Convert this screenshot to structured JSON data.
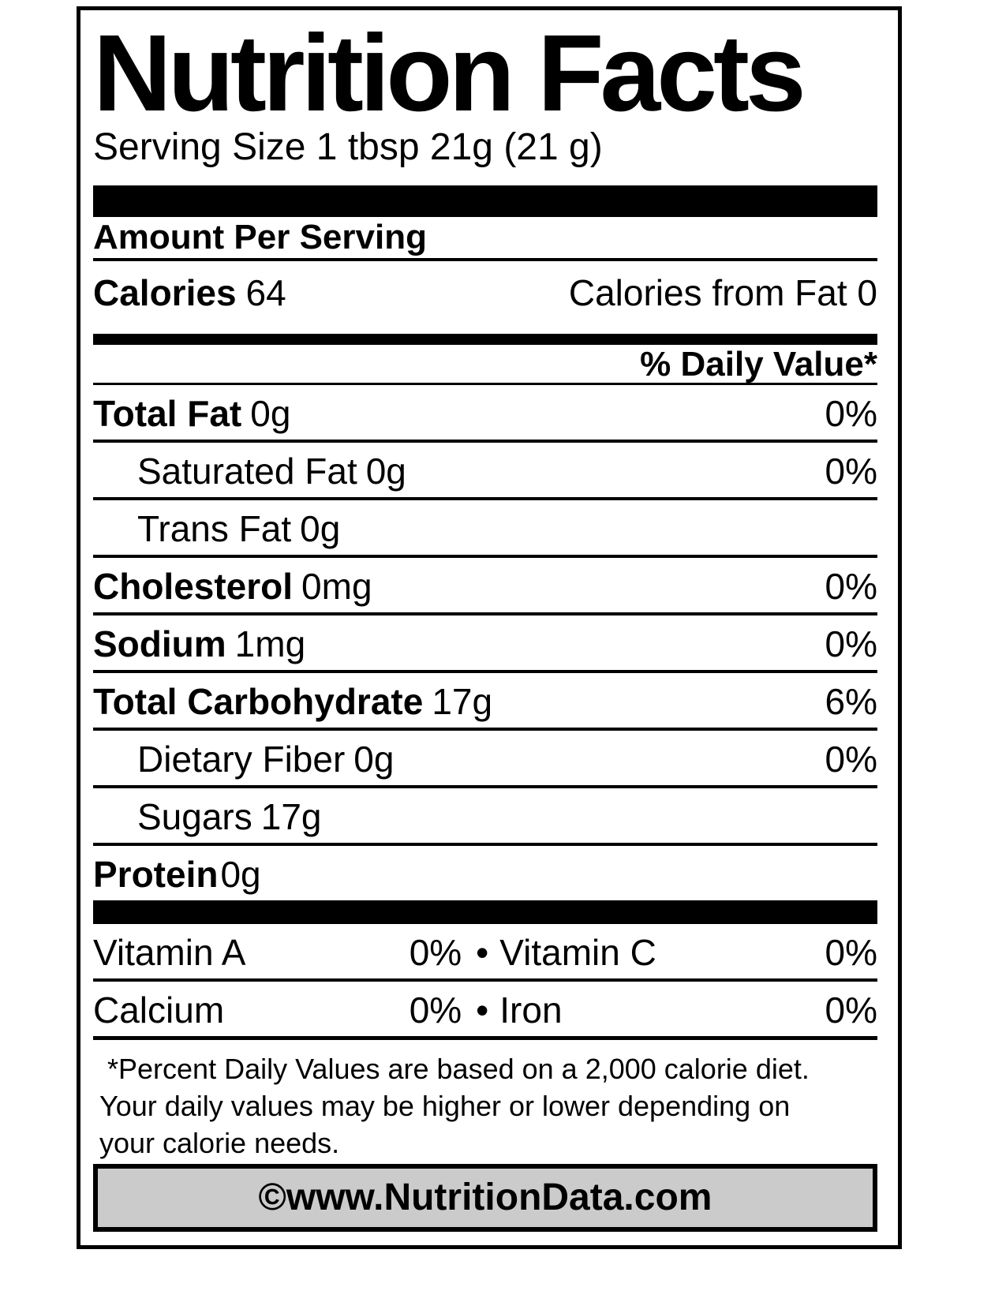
{
  "label": {
    "title": "Nutrition Facts",
    "serving_size": "Serving Size 1 tbsp 21g (21 g)",
    "amount_per_serving": "Amount Per Serving",
    "calories_label": "Calories",
    "calories_value": "64",
    "calories_from_fat_label": "Calories from Fat",
    "calories_from_fat_value": "0",
    "daily_value_header": "% Daily Value*",
    "nutrients": [
      {
        "name": "Total Fat",
        "amount": "0g",
        "dv": "0%",
        "bold": true,
        "indent": false,
        "tight": false
      },
      {
        "name": "Saturated Fat",
        "amount": "0g",
        "dv": "0%",
        "bold": false,
        "indent": true,
        "tight": false
      },
      {
        "name": "Trans Fat",
        "amount": "0g",
        "dv": "",
        "bold": false,
        "indent": true,
        "tight": false
      },
      {
        "name": "Cholesterol",
        "amount": "0mg",
        "dv": "0%",
        "bold": true,
        "indent": false,
        "tight": false
      },
      {
        "name": "Sodium",
        "amount": "1mg",
        "dv": "0%",
        "bold": true,
        "indent": false,
        "tight": false
      },
      {
        "name": "Total Carbohydrate",
        "amount": "17g",
        "dv": "6%",
        "bold": true,
        "indent": false,
        "tight": false
      },
      {
        "name": "Dietary Fiber",
        "amount": "0g",
        "dv": "0%",
        "bold": false,
        "indent": true,
        "tight": false
      },
      {
        "name": "Sugars",
        "amount": "17g",
        "dv": "",
        "bold": false,
        "indent": true,
        "tight": false
      },
      {
        "name": "Protein",
        "amount": "0g",
        "dv": "",
        "bold": true,
        "indent": false,
        "tight": true
      }
    ],
    "vitamins": [
      {
        "left_name": "Vitamin A",
        "left_value": "0%",
        "bullet": "•",
        "right_name": "Vitamin C",
        "right_value": "0%"
      },
      {
        "left_name": "Calcium",
        "left_value": "0%",
        "bullet": "•",
        "right_name": "Iron",
        "right_value": "0%"
      }
    ],
    "footnote": "*Percent Daily Values are based on a 2,000 calorie diet. Your daily values may be higher or lower depending on your calorie needs.",
    "source": "©www.NutritionData.com",
    "colors": {
      "ink": "#000000",
      "paper": "#ffffff",
      "source_bar_bg": "#cbcbcb"
    }
  }
}
